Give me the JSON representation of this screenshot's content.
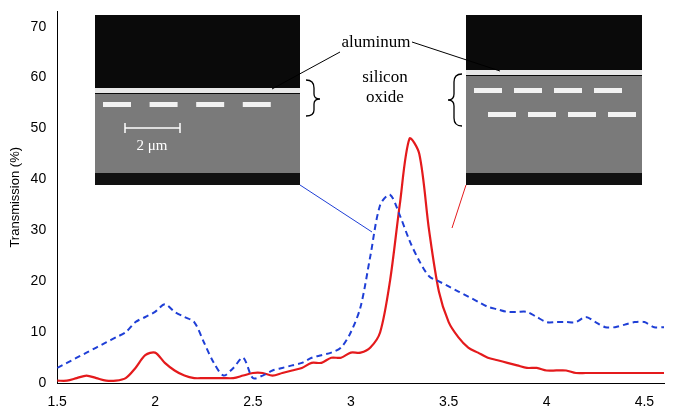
{
  "chart_data": {
    "type": "line",
    "ylabel": "Transmission (%)",
    "x": [
      1.5,
      1.55,
      1.6,
      1.65,
      1.7,
      1.75,
      1.8,
      1.85,
      1.9,
      1.95,
      2.0,
      2.05,
      2.1,
      2.15,
      2.2,
      2.25,
      2.3,
      2.35,
      2.4,
      2.45,
      2.5,
      2.55,
      2.6,
      2.65,
      2.7,
      2.75,
      2.8,
      2.85,
      2.9,
      2.95,
      3.0,
      3.05,
      3.1,
      3.15,
      3.2,
      3.25,
      3.3,
      3.35,
      3.4,
      3.45,
      3.5,
      3.55,
      3.6,
      3.65,
      3.7,
      3.75,
      3.8,
      3.85,
      3.9,
      3.95,
      4.0,
      4.05,
      4.1,
      4.15,
      4.2,
      4.25,
      4.3,
      4.35,
      4.4,
      4.45,
      4.5,
      4.55,
      4.6
    ],
    "series": [
      {
        "color": "#1f3fd6",
        "line_style": "dashed",
        "values": [
          3,
          4,
          5,
          6,
          7,
          8,
          9,
          10,
          12,
          13,
          14,
          15.5,
          14,
          13,
          12,
          8,
          4,
          1.5,
          3,
          5,
          1,
          1.5,
          2.5,
          3,
          3.5,
          4,
          5,
          5.5,
          6,
          7,
          10,
          15,
          25,
          35,
          37,
          33,
          28,
          24,
          21,
          20,
          19,
          18,
          17,
          16,
          15,
          14.5,
          14,
          14,
          14,
          13,
          12,
          12,
          12,
          12,
          13,
          12,
          11,
          11,
          11.5,
          12,
          12,
          11,
          11
        ]
      },
      {
        "color": "#e41a1c",
        "line_style": "solid",
        "values": [
          0.5,
          0.5,
          1,
          1.5,
          1,
          0.5,
          0.5,
          1,
          3,
          5.5,
          6,
          4,
          2.5,
          1.5,
          1,
          1,
          1,
          1,
          1,
          1.5,
          2,
          2,
          1.5,
          2,
          2.5,
          3,
          4,
          4,
          5,
          5,
          6,
          6,
          7,
          10,
          20,
          35,
          48,
          45,
          30,
          18,
          12,
          9,
          7,
          6,
          5,
          4.5,
          4,
          3.5,
          3,
          3,
          2.5,
          2.5,
          2.5,
          2,
          2,
          2,
          2,
          2,
          2,
          2,
          2,
          2,
          2
        ]
      }
    ],
    "xlim": [
      1.5,
      4.6
    ],
    "xticks": [
      1.5,
      2,
      2.5,
      3,
      3.5,
      4,
      4.5
    ],
    "ylim": [
      0,
      73
    ],
    "yticks": [
      0,
      10,
      20,
      30,
      40,
      50,
      60,
      70
    ],
    "grid": false,
    "annotations": [
      "aluminum",
      "silicon oxide",
      "2 μm"
    ]
  }
}
